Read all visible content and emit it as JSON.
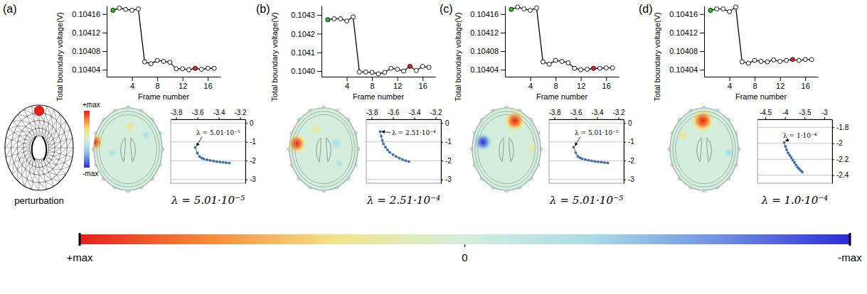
{
  "chart_data": [
    {
      "type": "line",
      "panel": "(a)",
      "xlabel": "Frame number",
      "ylabel": "Total boundary voltage(V)",
      "x": [
        1,
        2,
        3,
        4,
        5,
        6,
        7,
        8,
        9,
        10,
        11,
        12,
        13,
        14,
        15,
        16,
        17
      ],
      "xlim": [
        0,
        18
      ],
      "xticks": [
        4,
        8,
        12,
        16
      ],
      "ylim": [
        0.104025,
        0.104178
      ],
      "yticks": [
        0.10404,
        0.10408,
        0.10412,
        0.10416
      ],
      "grid": false,
      "series": [
        {
          "color": "#000000",
          "marker": "circle",
          "colors": [
            "#22cc22",
            "#ffffff",
            "#ffffff",
            "#ffffff",
            "#ffffff",
            "#ffffff",
            "#ffffff",
            "#ffffff",
            "#ffffff",
            "#ffffff",
            "#ffffff",
            "#ffffff",
            "#ffffff",
            "#ee2020",
            "#ffffff",
            "#ffffff",
            "#ffffff"
          ],
          "values": [
            0.104168,
            0.104173,
            0.10417,
            0.104168,
            0.104171,
            0.104057,
            0.104053,
            0.10406,
            0.104058,
            0.104056,
            0.104042,
            0.104042,
            0.10404,
            0.104043,
            0.104041,
            0.104043,
            0.104043
          ]
        }
      ],
      "inset": {
        "type": "line",
        "marker": "circle",
        "color": "#3b6db3",
        "grid": true,
        "annotation": "λ = 5.01·10⁻⁵",
        "caption": "λ = 5.01·10⁻⁵",
        "x": [
          -3.62,
          -3.6,
          -3.58,
          -3.56,
          -3.54,
          -3.51,
          -3.48,
          -3.45,
          -3.42,
          -3.39,
          -3.36,
          -3.33,
          -3.3
        ],
        "values": [
          -1.3,
          -1.6,
          -1.78,
          -1.86,
          -1.91,
          -1.95,
          -1.99,
          -2.02,
          -2.05,
          -2.07,
          -2.09,
          -2.11,
          -2.13
        ],
        "xlim": [
          -3.85,
          -3.15
        ],
        "xticks": [
          -3.8,
          -3.6,
          -3.4,
          -3.2
        ],
        "ylim": [
          -3.2,
          0.2
        ],
        "yticks": [
          0,
          -1,
          -2,
          -3
        ]
      }
    },
    {
      "type": "line",
      "panel": "(b)",
      "xlabel": "Frame number",
      "ylabel": "Total boundary voltage(V)",
      "x": [
        1,
        2,
        3,
        4,
        5,
        6,
        7,
        8,
        9,
        10,
        11,
        12,
        13,
        14,
        15,
        16,
        17
      ],
      "xlim": [
        0,
        18
      ],
      "xticks": [
        4,
        8,
        12,
        16
      ],
      "ylim": [
        0.10397,
        0.10435
      ],
      "yticks": [
        {
          "value": 0.104,
          "label": "0.1040"
        },
        0.1041,
        0.1042,
        0.1043
      ],
      "grid": false,
      "series": [
        {
          "color": "#000000",
          "marker": "circle",
          "colors": [
            "#22cc22",
            "#ffffff",
            "#ffffff",
            "#ffffff",
            "#ffffff",
            "#ffffff",
            "#ffffff",
            "#ffffff",
            "#ffffff",
            "#ffffff",
            "#ffffff",
            "#ffffff",
            "#ffffff",
            "#ee2020",
            "#ffffff",
            "#ffffff",
            "#ffffff"
          ],
          "values": [
            0.104275,
            0.10428,
            0.10428,
            0.104268,
            0.10429,
            0.103995,
            0.103995,
            0.103993,
            0.103985,
            0.103993,
            0.104015,
            0.10401,
            0.104,
            0.104025,
            0.104003,
            0.104025,
            0.10402
          ]
        }
      ],
      "inset": {
        "type": "line",
        "marker": "circle",
        "color": "#3b6db3",
        "grid": true,
        "annotation": "λ = 2.51·10⁻⁴",
        "caption": "λ = 2.51·10⁻⁴",
        "x": [
          -3.72,
          -3.71,
          -3.7,
          -3.69,
          -3.67,
          -3.65,
          -3.63,
          -3.6,
          -3.57,
          -3.54,
          -3.51,
          -3.48,
          -3.45
        ],
        "values": [
          -0.45,
          -0.7,
          -0.92,
          -1.1,
          -1.28,
          -1.43,
          -1.56,
          -1.68,
          -1.78,
          -1.87,
          -1.94,
          -2,
          -2.05
        ],
        "xlim": [
          -3.85,
          -3.15
        ],
        "xticks": [
          -3.8,
          -3.6,
          -3.4,
          -3.2
        ],
        "ylim": [
          -3.2,
          0.2
        ],
        "yticks": [
          0,
          -1,
          -2,
          -3
        ]
      }
    },
    {
      "type": "line",
      "panel": "(c)",
      "xlabel": "Frame number",
      "ylabel": "Total boundary voltage(V)",
      "x": [
        1,
        2,
        3,
        4,
        5,
        6,
        7,
        8,
        9,
        10,
        11,
        12,
        13,
        14,
        15,
        16,
        17
      ],
      "xlim": [
        0,
        18
      ],
      "xticks": [
        4,
        8,
        12,
        16
      ],
      "ylim": [
        0.104025,
        0.104178
      ],
      "yticks": [
        0.10404,
        0.10408,
        0.10412,
        0.10416
      ],
      "grid": false,
      "series": [
        {
          "color": "#000000",
          "marker": "circle",
          "colors": [
            "#22cc22",
            "#ffffff",
            "#ffffff",
            "#ffffff",
            "#ffffff",
            "#ffffff",
            "#ffffff",
            "#ffffff",
            "#ffffff",
            "#ffffff",
            "#ffffff",
            "#ffffff",
            "#ffffff",
            "#ee2020",
            "#ffffff",
            "#ffffff",
            "#ffffff"
          ],
          "values": [
            0.10417,
            0.104175,
            0.104171,
            0.104168,
            0.104173,
            0.104057,
            0.104052,
            0.10406,
            0.104058,
            0.104055,
            0.104043,
            0.10404,
            0.104041,
            0.104043,
            0.104043,
            0.104044,
            0.104044
          ]
        }
      ],
      "inset": {
        "type": "line",
        "marker": "circle",
        "color": "#3b6db3",
        "grid": true,
        "annotation": "λ = 5.01·10⁻⁵",
        "caption": "λ = 5.01·10⁻⁵",
        "x": [
          -3.62,
          -3.6,
          -3.58,
          -3.56,
          -3.54,
          -3.51,
          -3.48,
          -3.45,
          -3.42,
          -3.39,
          -3.36,
          -3.33,
          -3.3
        ],
        "values": [
          -1.28,
          -1.58,
          -1.77,
          -1.85,
          -1.9,
          -1.94,
          -1.98,
          -2.01,
          -2.04,
          -2.06,
          -2.08,
          -2.1,
          -2.12
        ],
        "xlim": [
          -3.85,
          -3.15
        ],
        "xticks": [
          -3.8,
          -3.6,
          -3.4,
          -3.2
        ],
        "ylim": [
          -3.2,
          0.2
        ],
        "yticks": [
          0,
          -1,
          -2,
          -3
        ]
      }
    },
    {
      "type": "line",
      "panel": "(d)",
      "xlabel": "Frame number",
      "ylabel": "Total boundary voltage(V)",
      "x": [
        1,
        2,
        3,
        4,
        5,
        6,
        7,
        8,
        9,
        10,
        11,
        12,
        13,
        14,
        15,
        16,
        17
      ],
      "xlim": [
        0,
        18
      ],
      "xticks": [
        4,
        8,
        12,
        16
      ],
      "ylim": [
        0.104025,
        0.104178
      ],
      "yticks": [
        0.10404,
        0.10408,
        0.10412,
        0.10416
      ],
      "grid": false,
      "series": [
        {
          "color": "#000000",
          "marker": "circle",
          "colors": [
            "#22cc22",
            "#ffffff",
            "#ffffff",
            "#ffffff",
            "#ffffff",
            "#ffffff",
            "#ffffff",
            "#ffffff",
            "#ffffff",
            "#ffffff",
            "#ffffff",
            "#ffffff",
            "#ffffff",
            "#ee2020",
            "#ffffff",
            "#ffffff",
            "#ffffff"
          ],
          "values": [
            0.104168,
            0.104171,
            0.104171,
            0.104165,
            0.104175,
            0.104057,
            0.104054,
            0.10406,
            0.104058,
            0.104057,
            0.104061,
            0.104058,
            0.10406,
            0.104062,
            0.10406,
            0.104062,
            0.104062
          ]
        }
      ],
      "inset": {
        "type": "line",
        "marker": "circle",
        "color": "#3b6db3",
        "grid": true,
        "annotation": "λ = 1·10⁻⁴",
        "caption": "λ = 1.0·10⁻⁴",
        "x": [
          -4.02,
          -3.99,
          -3.96,
          -3.92,
          -3.88,
          -3.84,
          -3.8,
          -3.76,
          -3.72,
          -3.68,
          -3.64,
          -3.6,
          -3.56
        ],
        "values": [
          -1.99,
          -2.04,
          -2.08,
          -2.12,
          -2.15,
          -2.18,
          -2.21,
          -2.24,
          -2.27,
          -2.3,
          -2.32,
          -2.34,
          -2.36
        ],
        "xlim": [
          -4.7,
          -2.8
        ],
        "xticks": [
          -4.5,
          -4,
          -3.5,
          -3
        ],
        "ylim": [
          -2.5,
          -1.7
        ],
        "yticks": [
          -1.8,
          -2,
          -2.2,
          -2.4
        ]
      }
    }
  ],
  "perturbation_label": "perturbation",
  "colorbar": {
    "range": [
      1,
      -1
    ],
    "ticks": [
      {
        "value": 1,
        "label": "+max"
      },
      0,
      {
        "value": -1,
        "label": "-max"
      }
    ],
    "colors": [
      "#e4201c",
      "#f58a3a",
      "#f3e48a",
      "#d3eedd",
      "#a9dbe6",
      "#6f8fe0",
      "#2c2cd6"
    ]
  }
}
